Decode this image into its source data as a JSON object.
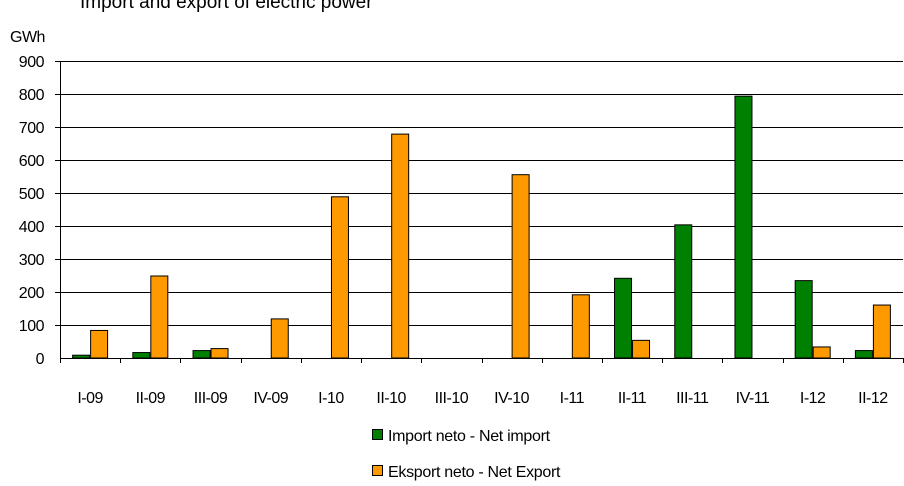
{
  "chart_data": {
    "type": "bar",
    "title": "Import and export of electric power",
    "ylabel": "GWh",
    "ylim": [
      0,
      900
    ],
    "yticks": [
      0,
      100,
      200,
      300,
      400,
      500,
      600,
      700,
      800,
      900
    ],
    "grid": true,
    "legend_position": "bottom",
    "categories": [
      "I-09",
      "II-09",
      "III-09",
      "IV-09",
      "I-10",
      "II-10",
      "III-10",
      "IV-10",
      "I-11",
      "II-11",
      "III-11",
      "IV-11",
      "I-12",
      "II-12"
    ],
    "series": [
      {
        "name": "Import neto - Net import",
        "color": "#008000",
        "values": [
          10,
          18,
          24,
          0,
          0,
          0,
          0,
          0,
          0,
          243,
          405,
          795,
          236,
          24
        ]
      },
      {
        "name": "Eksport neto - Net Export",
        "color": "#FF9900",
        "values": [
          85,
          250,
          30,
          120,
          490,
          680,
          0,
          557,
          193,
          55,
          0,
          0,
          35,
          162
        ]
      }
    ]
  }
}
